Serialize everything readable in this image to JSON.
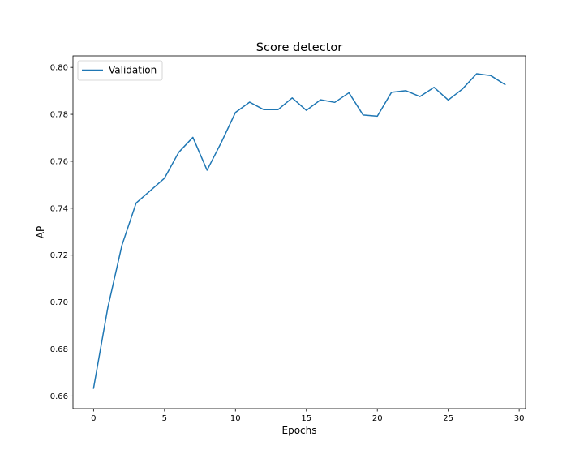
{
  "chart_data": {
    "type": "line",
    "title": "Score detector",
    "xlabel": "Epochs",
    "ylabel": "AP",
    "xlim": [
      -1.45,
      30.45
    ],
    "ylim": [
      0.6546,
      0.8049
    ],
    "xticks": [
      0,
      5,
      10,
      15,
      20,
      25,
      30
    ],
    "yticks": [
      0.66,
      0.68,
      0.7,
      0.72,
      0.74,
      0.76,
      0.78,
      0.8
    ],
    "ytick_labels": [
      "0.66",
      "0.68",
      "0.70",
      "0.72",
      "0.74",
      "0.76",
      "0.78",
      "0.80"
    ],
    "grid": false,
    "legend_position": "top-left",
    "series": [
      {
        "name": "Validation",
        "color": "#1f77b4",
        "x": [
          0,
          1,
          2,
          3,
          4,
          5,
          6,
          7,
          8,
          9,
          10,
          11,
          12,
          13,
          14,
          15,
          16,
          17,
          18,
          19,
          20,
          21,
          22,
          23,
          24,
          25,
          26,
          27,
          28,
          29
        ],
        "values": [
          0.6633,
          0.6975,
          0.7242,
          0.7422,
          0.7475,
          0.7528,
          0.7638,
          0.7702,
          0.7562,
          0.768,
          0.7808,
          0.7852,
          0.782,
          0.782,
          0.787,
          0.7817,
          0.7862,
          0.7851,
          0.7892,
          0.7797,
          0.7792,
          0.7894,
          0.7901,
          0.7876,
          0.7915,
          0.7861,
          0.7908,
          0.7973,
          0.7965,
          0.7927
        ]
      }
    ]
  }
}
